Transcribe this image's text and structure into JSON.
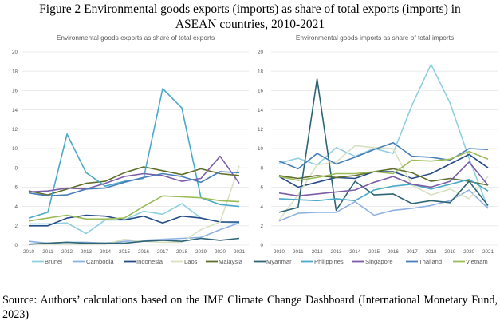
{
  "figure": {
    "title_line1": "Figure 2 Environmental goods exports (imports) as share of total exports (imports) in",
    "title_line2": "ASEAN countries, 2010-2021",
    "source": "Source: Authors’ calculations based on the IMF Climate Change Dashboard (International Monetary Fund, 2023)"
  },
  "legend": [
    {
      "name": "Brunei",
      "color": "#8fcfe0"
    },
    {
      "name": "Cambodia",
      "color": "#8fb1e3"
    },
    {
      "name": "Indonesia",
      "color": "#254c86"
    },
    {
      "name": "Laos",
      "color": "#d8e2c2"
    },
    {
      "name": "Malaysia",
      "color": "#5e6e2b"
    },
    {
      "name": "Myanmar",
      "color": "#2e6475"
    },
    {
      "name": "Philippines",
      "color": "#4aaac8"
    },
    {
      "name": "Singapore",
      "color": "#7b5ea7"
    },
    {
      "name": "Thailand",
      "color": "#4a7ebb"
    },
    {
      "name": "Vietnam",
      "color": "#9bbb59"
    }
  ],
  "chart_data": [
    {
      "type": "line",
      "title": "Environmental goods exports as share of total exports",
      "xlabel": "",
      "ylabel": "",
      "x": [
        "2010",
        "2011",
        "2012",
        "2013",
        "2014",
        "2015",
        "2016",
        "2017",
        "2018",
        "2019",
        "2020",
        "2021"
      ],
      "ylim": [
        0,
        20
      ],
      "yticks": [
        0,
        2,
        4,
        6,
        8,
        10,
        12,
        14,
        16,
        18,
        20
      ],
      "grid": true,
      "legend_position": "bottom",
      "series": [
        {
          "name": "Brunei",
          "values": [
            2.2,
            2.2,
            2.3,
            1.2,
            2.6,
            2.6,
            3.5,
            3.2,
            4.3,
            2.8,
            2.4,
            2.3
          ]
        },
        {
          "name": "Cambodia",
          "values": [
            0.4,
            0.2,
            0.3,
            0.3,
            0.2,
            0.4,
            0.5,
            0.6,
            0.7,
            0.8,
            1.6,
            2.3
          ]
        },
        {
          "name": "Indonesia",
          "values": [
            2.0,
            2.0,
            2.8,
            3.1,
            3.0,
            2.6,
            3.0,
            2.3,
            3.0,
            2.8,
            2.4,
            2.4
          ]
        },
        {
          "name": "Laos",
          "values": [
            0.1,
            0.1,
            0.1,
            0.1,
            0.1,
            0.6,
            0.4,
            0.3,
            0.3,
            1.6,
            2.4,
            8.2
          ]
        },
        {
          "name": "Malaysia",
          "values": [
            5.6,
            5.2,
            5.8,
            6.4,
            6.6,
            7.5,
            8.1,
            7.7,
            7.3,
            7.9,
            7.4,
            7.2
          ]
        },
        {
          "name": "Myanmar",
          "values": [
            0.1,
            0.2,
            0.3,
            0.2,
            0.2,
            0.2,
            0.4,
            0.5,
            0.4,
            0.7,
            0.5,
            0.7
          ]
        },
        {
          "name": "Philippines",
          "values": [
            2.8,
            3.4,
            11.5,
            7.5,
            6.1,
            6.6,
            6.9,
            16.2,
            14.2,
            4.9,
            4.2,
            4.0
          ]
        },
        {
          "name": "Singapore",
          "values": [
            5.5,
            5.6,
            5.9,
            5.8,
            6.4,
            7.1,
            7.4,
            7.2,
            6.6,
            6.9,
            9.2,
            6.4
          ]
        },
        {
          "name": "Thailand",
          "values": [
            5.4,
            5.1,
            5.2,
            5.8,
            5.9,
            6.5,
            7.0,
            7.4,
            7.1,
            6.5,
            7.6,
            7.5
          ]
        },
        {
          "name": "Vietnam",
          "values": [
            2.5,
            2.8,
            3.1,
            2.7,
            2.7,
            2.8,
            4.0,
            5.1,
            5.0,
            4.9,
            4.6,
            4.5
          ]
        }
      ]
    },
    {
      "type": "line",
      "title": "Environmental goods imports as share of total imports",
      "xlabel": "",
      "ylabel": "",
      "x": [
        "2010",
        "2011",
        "2012",
        "2013",
        "2014",
        "2015",
        "2016",
        "2017",
        "2018",
        "2019",
        "2020",
        "2021"
      ],
      "ylim": [
        0,
        20
      ],
      "yticks": [
        0,
        2,
        4,
        6,
        8,
        10,
        12,
        14,
        16,
        18,
        20
      ],
      "grid": true,
      "legend_position": "bottom",
      "series": [
        {
          "name": "Brunei",
          "values": [
            8.5,
            9.0,
            8.3,
            10.1,
            9.2,
            10.0,
            9.5,
            14.5,
            18.7,
            14.7,
            9.0,
            3.8
          ]
        },
        {
          "name": "Cambodia",
          "values": [
            2.5,
            3.3,
            3.4,
            3.4,
            4.5,
            3.1,
            3.6,
            3.8,
            4.1,
            4.6,
            5.7,
            3.8
          ]
        },
        {
          "name": "Indonesia",
          "values": [
            7.1,
            6.0,
            6.5,
            7.0,
            6.9,
            7.6,
            7.6,
            6.9,
            7.4,
            8.4,
            9.4,
            8.0
          ]
        },
        {
          "name": "Laos",
          "values": [
            2.6,
            5.2,
            8.3,
            8.6,
            10.3,
            10.1,
            10.0,
            6.2,
            5.2,
            5.8,
            4.8,
            7.1
          ]
        },
        {
          "name": "Malaysia",
          "values": [
            7.2,
            6.9,
            7.2,
            7.0,
            7.2,
            7.6,
            7.9,
            7.5,
            6.6,
            6.9,
            6.6,
            6.2
          ]
        },
        {
          "name": "Myanmar",
          "values": [
            3.4,
            3.9,
            17.2,
            3.6,
            6.6,
            5.2,
            5.3,
            4.3,
            4.6,
            4.4,
            6.6,
            4.1
          ]
        },
        {
          "name": "Philippines",
          "values": [
            4.8,
            4.7,
            4.6,
            4.8,
            4.6,
            5.7,
            6.1,
            6.3,
            5.8,
            6.3,
            6.8,
            5.6
          ]
        },
        {
          "name": "Singapore",
          "values": [
            5.4,
            5.1,
            5.3,
            5.5,
            5.7,
            6.5,
            7.1,
            6.3,
            6.0,
            6.6,
            8.6,
            6.2
          ]
        },
        {
          "name": "Thailand",
          "values": [
            8.7,
            7.9,
            9.5,
            8.4,
            9.1,
            9.9,
            10.6,
            9.2,
            9.1,
            8.8,
            10.0,
            9.9
          ]
        },
        {
          "name": "Vietnam",
          "values": [
            7.1,
            6.7,
            7.0,
            7.4,
            7.4,
            7.6,
            7.4,
            8.8,
            8.7,
            8.9,
            9.7,
            8.9
          ]
        }
      ]
    }
  ]
}
